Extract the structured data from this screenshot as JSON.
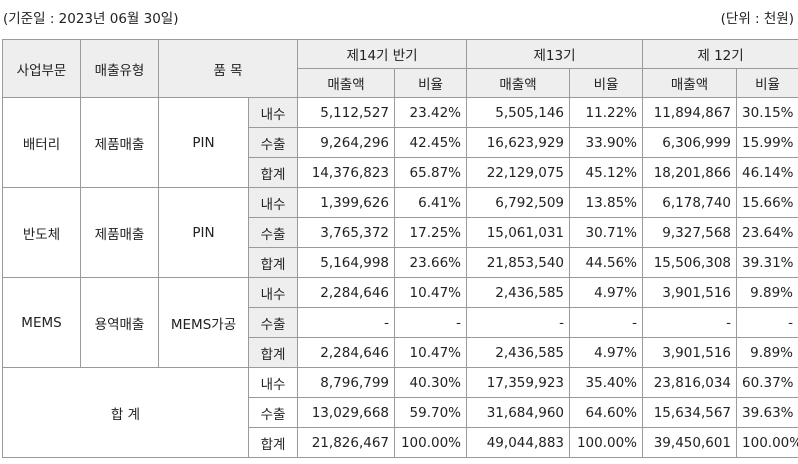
{
  "captions": {
    "base_date": "(기준일 : 2023년 06월 30일)",
    "unit": "(단위 : 천원)"
  },
  "headers": {
    "division": "사업부문",
    "sales_type": "매출유형",
    "item": "품 목",
    "periods": [
      "제14기 반기",
      "제13기",
      "제 12기"
    ],
    "sales": "매출액",
    "ratio": "비율"
  },
  "groups": [
    {
      "division": "배터리",
      "sales_type": "제품매출",
      "item": "PIN",
      "rows": [
        {
          "label": "내수",
          "values": [
            "5,112,527",
            "23.42%",
            "5,505,146",
            "11.22%",
            "11,894,867",
            "30.15%"
          ]
        },
        {
          "label": "수출",
          "values": [
            "9,264,296",
            "42.45%",
            "16,623,929",
            "33.90%",
            "6,306,999",
            "15.99%"
          ]
        },
        {
          "label": "합계",
          "values": [
            "14,376,823",
            "65.87%",
            "22,129,075",
            "45.12%",
            "18,201,866",
            "46.14%"
          ]
        }
      ]
    },
    {
      "division": "반도체",
      "sales_type": "제품매출",
      "item": "PIN",
      "rows": [
        {
          "label": "내수",
          "values": [
            "1,399,626",
            "6.41%",
            "6,792,509",
            "13.85%",
            "6,178,740",
            "15.66%"
          ]
        },
        {
          "label": "수출",
          "values": [
            "3,765,372",
            "17.25%",
            "15,061,031",
            "30.71%",
            "9,327,568",
            "23.64%"
          ]
        },
        {
          "label": "합계",
          "values": [
            "5,164,998",
            "23.66%",
            "21,853,540",
            "44.56%",
            "15,506,308",
            "39.31%"
          ]
        }
      ]
    },
    {
      "division": "MEMS",
      "sales_type": "용역매출",
      "item": "MEMS가공",
      "rows": [
        {
          "label": "내수",
          "values": [
            "2,284,646",
            "10.47%",
            "2,436,585",
            "4.97%",
            "3,901,516",
            "9.89%"
          ]
        },
        {
          "label": "수출",
          "values": [
            "-",
            "-",
            "-",
            "-",
            "-",
            "-"
          ]
        },
        {
          "label": "합계",
          "values": [
            "2,284,646",
            "10.47%",
            "2,436,585",
            "4.97%",
            "3,901,516",
            "9.89%"
          ]
        }
      ]
    }
  ],
  "total": {
    "label": "합 계",
    "rows": [
      {
        "label": "내수",
        "values": [
          "8,796,799",
          "40.30%",
          "17,359,923",
          "35.40%",
          "23,816,034",
          "60.37%"
        ]
      },
      {
        "label": "수출",
        "values": [
          "13,029,668",
          "59.70%",
          "31,684,960",
          "64.60%",
          "15,634,567",
          "39.63%"
        ]
      },
      {
        "label": "합계",
        "values": [
          "21,826,467",
          "100.00%",
          "49,044,883",
          "100.00%",
          "39,450,601",
          "100.00%"
        ]
      }
    ]
  }
}
